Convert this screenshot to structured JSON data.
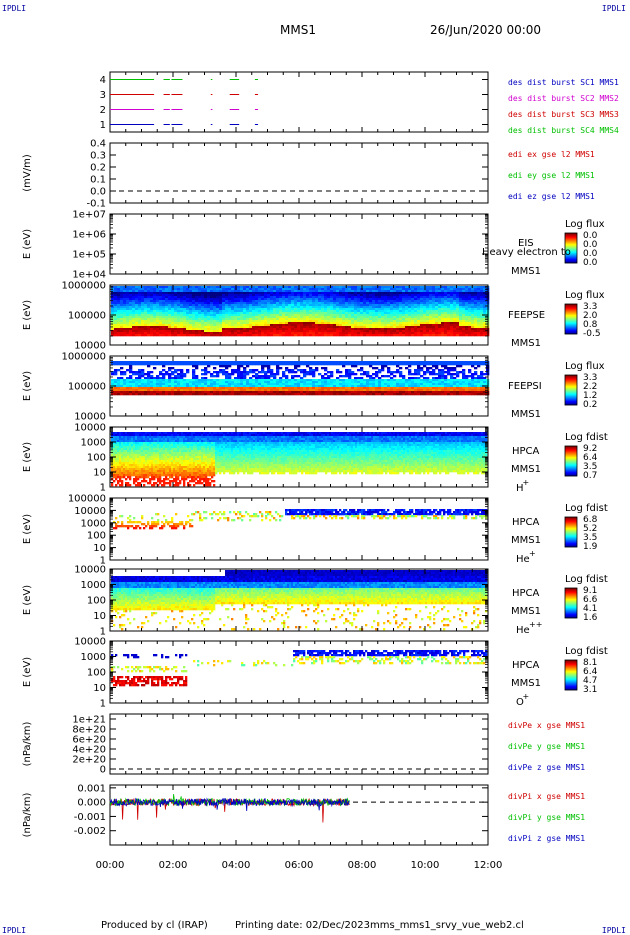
{
  "corners": {
    "tl": "IPDLI",
    "tr": "IPDLI",
    "bl": "IPDLI",
    "br": "IPDLI"
  },
  "header": {
    "spacecraft": "MMS1",
    "date": "26/Jun/2020 00:00"
  },
  "footer": {
    "produced": "Produced by cl (IRAP)",
    "printed": "Printing date: 02/Dec/2023",
    "file": "mms_mms1_srvy_vue_web2.cl"
  },
  "colors": {
    "blue": "#0000c0",
    "red": "#d00000",
    "magenta": "#d000d0",
    "green": "#00c000"
  },
  "chart_data": [
    {
      "id": "p1",
      "type": "line",
      "title": "",
      "xlabel": "",
      "ylabel": "",
      "ylim": [
        0.5,
        4.5
      ],
      "yticks": [
        "1",
        "2",
        "3",
        "4"
      ],
      "series": [
        {
          "name": "des dist burst SC1 MMS1",
          "color": "#0000c0",
          "y": 1,
          "segments": [
            [
              0.0,
              1.4
            ],
            [
              1.7,
              1.9
            ],
            [
              1.95,
              2.3
            ],
            [
              3.2,
              3.25
            ],
            [
              3.8,
              4.1
            ],
            [
              4.6,
              4.7
            ]
          ]
        },
        {
          "name": "des dist burst SC2 MMS2",
          "color": "#d000d0",
          "y": 2,
          "segments": [
            [
              0.0,
              1.4
            ],
            [
              1.7,
              1.9
            ],
            [
              1.95,
              2.3
            ],
            [
              3.2,
              3.25
            ],
            [
              3.8,
              4.1
            ],
            [
              4.6,
              4.7
            ]
          ]
        },
        {
          "name": "des dist burst SC3 MMS3",
          "color": "#d00000",
          "y": 3,
          "segments": [
            [
              0.0,
              1.4
            ],
            [
              1.7,
              1.9
            ],
            [
              1.95,
              2.3
            ],
            [
              3.2,
              3.25
            ],
            [
              3.8,
              4.1
            ],
            [
              4.6,
              4.7
            ]
          ]
        },
        {
          "name": "des dist burst SC4 MMS4",
          "color": "#00c000",
          "y": 4,
          "segments": [
            [
              0.0,
              1.4
            ],
            [
              1.7,
              1.9
            ],
            [
              1.95,
              2.3
            ],
            [
              3.2,
              3.25
            ],
            [
              3.8,
              4.1
            ],
            [
              4.6,
              4.7
            ]
          ]
        }
      ]
    },
    {
      "id": "p2",
      "type": "line",
      "title": "",
      "xlabel": "",
      "ylabel": "(mV/m)",
      "ylim": [
        -0.1,
        0.4
      ],
      "yticks": [
        "-0.1",
        "0.0",
        "0.1",
        "0.2",
        "0.3",
        "0.4"
      ],
      "series": [
        {
          "name": "edi ex gse l2 MMS1",
          "color": "#d00000"
        },
        {
          "name": "edi ey gse l2 MMS1",
          "color": "#00c000"
        },
        {
          "name": "edi ez gse l2 MMS1",
          "color": "#0000c0"
        }
      ]
    },
    {
      "id": "p3",
      "type": "heatmap",
      "title": "",
      "xlabel": "",
      "ylabel": "E (eV)",
      "ylim": [
        10000,
        10000000
      ],
      "yscale": "log",
      "yticks": [
        "1e+04",
        "1e+05",
        "1e+06",
        "1e+07"
      ],
      "labels": [
        "EIS",
        "MMS1"
      ],
      "overlay": "Heavy electron to",
      "cb_title": "Log flux",
      "cb_ticks": [
        "0.0",
        "0.0",
        "0.0",
        "0.0"
      ]
    },
    {
      "id": "p4",
      "type": "heatmap",
      "title": "",
      "xlabel": "",
      "ylabel": "E (eV)",
      "ylim": [
        10000,
        1000000
      ],
      "yscale": "log",
      "yticks": [
        "10000",
        "100000",
        "1000000"
      ],
      "labels": [
        "FEEPSE",
        "MMS1"
      ],
      "cb_title": "Log flux",
      "cb_ticks": [
        "3.3",
        "2.0",
        "0.8",
        "-0.5"
      ]
    },
    {
      "id": "p5",
      "type": "heatmap",
      "title": "",
      "xlabel": "",
      "ylabel": "E (eV)",
      "ylim": [
        10000,
        1000000
      ],
      "yscale": "log",
      "yticks": [
        "10000",
        "100000",
        "1000000"
      ],
      "labels": [
        "FEEPSI",
        "MMS1"
      ],
      "cb_title": "Log flux",
      "cb_ticks": [
        "3.3",
        "2.2",
        "1.2",
        "0.2"
      ]
    },
    {
      "id": "p6",
      "type": "heatmap",
      "title": "",
      "xlabel": "",
      "ylabel": "E (eV)",
      "ylim": [
        1,
        10000
      ],
      "yscale": "log",
      "yticks": [
        "1",
        "10",
        "100",
        "1000",
        "10000"
      ],
      "labels": [
        "HPCA",
        "MMS1",
        "H",
        "+"
      ],
      "cb_title": "Log fdist",
      "cb_ticks": [
        "9.2",
        "6.4",
        "3.5",
        "0.7"
      ]
    },
    {
      "id": "p7",
      "type": "heatmap",
      "title": "",
      "xlabel": "",
      "ylabel": "E (eV)",
      "ylim": [
        1,
        100000
      ],
      "yscale": "log",
      "yticks": [
        "1",
        "10",
        "100",
        "1000",
        "10000",
        "100000"
      ],
      "labels": [
        "HPCA",
        "MMS1",
        "He",
        "+"
      ],
      "cb_title": "Log fdist",
      "cb_ticks": [
        "6.8",
        "5.2",
        "3.5",
        "1.9"
      ]
    },
    {
      "id": "p8",
      "type": "heatmap",
      "title": "",
      "xlabel": "",
      "ylabel": "E (eV)",
      "ylim": [
        1,
        10000
      ],
      "yscale": "log",
      "yticks": [
        "1",
        "10",
        "100",
        "1000",
        "10000"
      ],
      "labels": [
        "HPCA",
        "MMS1",
        "He",
        "++"
      ],
      "cb_title": "Log fdist",
      "cb_ticks": [
        "9.1",
        "6.6",
        "4.1",
        "1.6"
      ]
    },
    {
      "id": "p9",
      "type": "heatmap",
      "title": "",
      "xlabel": "",
      "ylabel": "E (eV)",
      "ylim": [
        1,
        10000
      ],
      "yscale": "log",
      "yticks": [
        "1",
        "10",
        "100",
        "1000",
        "10000"
      ],
      "labels": [
        "HPCA",
        "MMS1",
        "O",
        "+"
      ],
      "cb_title": "Log fdist",
      "cb_ticks": [
        "8.1",
        "6.4",
        "4.7",
        "3.1"
      ]
    },
    {
      "id": "p10",
      "type": "line",
      "title": "",
      "xlabel": "",
      "ylabel": "(nPa/km)",
      "ylim": [
        -1e+20,
        1.1e+21
      ],
      "yticks": [
        "0",
        "2e+20",
        "4e+20",
        "6e+20",
        "8e+20",
        "1e+21"
      ],
      "series": [
        {
          "name": "divPe x gse MMS1",
          "color": "#d00000"
        },
        {
          "name": "divPe y gse MMS1",
          "color": "#00c000"
        },
        {
          "name": "divPe z gse MMS1",
          "color": "#0000c0"
        }
      ]
    },
    {
      "id": "p11",
      "type": "line",
      "title": "",
      "xlabel": "",
      "ylabel": "(nPa/km)",
      "ylim": [
        -0.003,
        0.0012
      ],
      "yticks": [
        "-0.002",
        "-0.001",
        "0.000",
        "0.001"
      ],
      "data_end_hour": 7.6,
      "series": [
        {
          "name": "divPi x gse MMS1",
          "color": "#d00000"
        },
        {
          "name": "divPi y gse MMS1",
          "color": "#00c000"
        },
        {
          "name": "divPi z gse MMS1",
          "color": "#0000c0"
        }
      ]
    }
  ],
  "xaxis": {
    "ticks": [
      "00:00",
      "02:00",
      "04:00",
      "06:00",
      "08:00",
      "10:00",
      "12:00"
    ],
    "xlim_hours": [
      0,
      12
    ]
  }
}
